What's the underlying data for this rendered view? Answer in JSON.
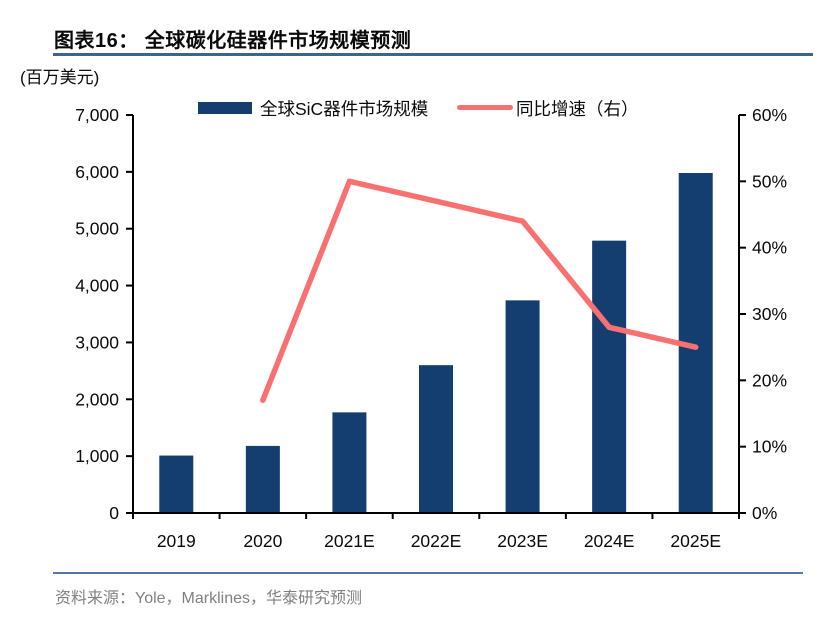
{
  "header": {
    "title": "图表16：  全球碳化硅器件市场规模预测"
  },
  "unit_label": "(百万美元)",
  "legend": [
    {
      "label": "全球SiC器件市场规模",
      "type": "bar"
    },
    {
      "label": "同比增速（右）",
      "type": "line"
    }
  ],
  "footer": {
    "source": "资料来源：Yole，Marklines，华泰研究预测"
  },
  "colors": {
    "bar": "#143E70",
    "line": "#F87170",
    "rule_title": "#3D6391",
    "rule_source": "#5577A3",
    "text_gray": "#808080",
    "axis": "#000000"
  },
  "chart_data": {
    "type": "bar+line combo",
    "title": "全球碳化硅器件市场规模预测",
    "categories": [
      "2019",
      "2020",
      "2021E",
      "2022E",
      "2023E",
      "2024E",
      "2025E"
    ],
    "series": [
      {
        "name": "全球SiC器件市场规模",
        "type": "bar",
        "axis": "left",
        "unit": "百万美元",
        "values": [
          1010,
          1180,
          1770,
          2600,
          3740,
          4790,
          5980
        ]
      },
      {
        "name": "同比增速（右）",
        "type": "line",
        "axis": "right",
        "unit": "%",
        "values": [
          null,
          17,
          50,
          47,
          44,
          28,
          25
        ]
      }
    ],
    "left_axis": {
      "min": 0,
      "max": 7000,
      "step": 1000,
      "tick_labels": [
        "0",
        "1,000",
        "2,000",
        "3,000",
        "4,000",
        "5,000",
        "6,000",
        "7,000"
      ]
    },
    "right_axis": {
      "min": 0,
      "max": 60,
      "step": 10,
      "tick_labels": [
        "0%",
        "10%",
        "20%",
        "30%",
        "40%",
        "50%",
        "60%"
      ]
    },
    "grid": false,
    "legend_position": "top"
  }
}
